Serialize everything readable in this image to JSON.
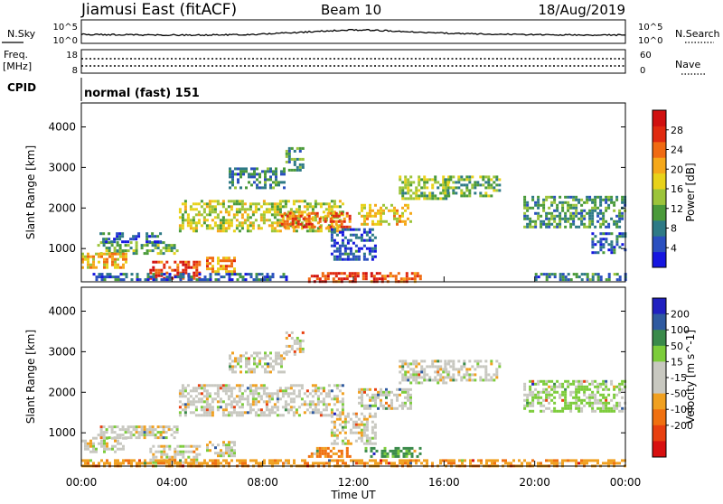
{
  "header": {
    "title": "Jiamusi East (fitACF)",
    "beam": "Beam 10",
    "date": "18/Aug/2019"
  },
  "noise_panel": {
    "left_label": "N.Sky",
    "right_label": "N.Search",
    "left_ticks": [
      "10^5",
      "10^0"
    ],
    "right_ticks": [
      "10^5",
      "10^0"
    ]
  },
  "freq_panel": {
    "left_label": "Freq.",
    "left_unit": "[MHz]",
    "right_label": "Nave",
    "left_ticks": [
      "18",
      "8"
    ],
    "right_ticks": [
      "60",
      "0"
    ]
  },
  "cpid_panel": {
    "label": "CPID",
    "mode": "normal (fast) 151"
  },
  "time_axis": {
    "label": "Time UT",
    "ticks": [
      "00:00",
      "04:00",
      "08:00",
      "12:00",
      "16:00",
      "20:00",
      "00:00"
    ]
  },
  "chart_data": [
    {
      "type": "heatmap",
      "title": "Power",
      "xlabel": "Time UT",
      "ylabel": "Slant Range [km]",
      "x_ticks": [
        "00:00",
        "04:00",
        "08:00",
        "12:00",
        "16:00",
        "20:00",
        "00:00"
      ],
      "y_ticks": [
        1000,
        2000,
        3000,
        4000
      ],
      "ylim": [
        180,
        4590
      ],
      "colorbar": {
        "label": "Power [dB]",
        "ticks": [
          4,
          8,
          12,
          16,
          20,
          24,
          28
        ],
        "colors": [
          "#1616e0",
          "#2a4fbf",
          "#2e7a86",
          "#4a9a3a",
          "#9cc43a",
          "#e8d21a",
          "#f5a81a",
          "#f06a12",
          "#e02a10",
          "#d01010"
        ]
      },
      "bands": [
        {
          "x_start_h": 0.7,
          "x_end_h": 4.2,
          "range_start": 900,
          "range_end": 1180,
          "level": 12
        },
        {
          "x_start_h": 0.8,
          "x_end_h": 3.5,
          "range_start": 1180,
          "range_end": 1400,
          "level": 6
        },
        {
          "x_start_h": 0.0,
          "x_end_h": 2.0,
          "range_start": 520,
          "range_end": 900,
          "level": 20
        },
        {
          "x_start_h": 3.0,
          "x_end_h": 5.2,
          "range_start": 250,
          "range_end": 700,
          "level": 26
        },
        {
          "x_start_h": 5.5,
          "x_end_h": 6.8,
          "range_start": 400,
          "range_end": 800,
          "level": 22
        },
        {
          "x_start_h": 4.3,
          "x_end_h": 11.5,
          "range_start": 1400,
          "range_end": 2200,
          "level": 16
        },
        {
          "x_start_h": 8.8,
          "x_end_h": 11.8,
          "range_start": 1500,
          "range_end": 1900,
          "level": 24
        },
        {
          "x_start_h": 6.5,
          "x_end_h": 9.0,
          "range_start": 2500,
          "range_end": 3000,
          "level": 8
        },
        {
          "x_start_h": 9.0,
          "x_end_h": 9.8,
          "range_start": 2900,
          "range_end": 3500,
          "level": 10
        },
        {
          "x_start_h": 12.2,
          "x_end_h": 14.5,
          "range_start": 1600,
          "range_end": 2100,
          "level": 18
        },
        {
          "x_start_h": 14.0,
          "x_end_h": 16.2,
          "range_start": 2200,
          "range_end": 2800,
          "level": 14
        },
        {
          "x_start_h": 16.0,
          "x_end_h": 18.5,
          "range_start": 2300,
          "range_end": 2800,
          "level": 12
        },
        {
          "x_start_h": 19.5,
          "x_end_h": 24.0,
          "range_start": 1500,
          "range_end": 2300,
          "level": 10
        },
        {
          "x_start_h": 10.0,
          "x_end_h": 15.0,
          "range_start": 200,
          "range_end": 420,
          "level": 26
        },
        {
          "x_start_h": 11.0,
          "x_end_h": 13.0,
          "range_start": 700,
          "range_end": 1500,
          "level": 5
        },
        {
          "x_start_h": 20.0,
          "x_end_h": 24.0,
          "range_start": 200,
          "range_end": 400,
          "level": 8
        },
        {
          "x_start_h": 0.5,
          "x_end_h": 9.0,
          "range_start": 200,
          "range_end": 400,
          "level": 6
        },
        {
          "x_start_h": 22.5,
          "x_end_h": 24.0,
          "range_start": 900,
          "range_end": 1400,
          "level": 6
        }
      ]
    },
    {
      "type": "heatmap",
      "title": "Velocity",
      "xlabel": "Time UT",
      "ylabel": "Slant Range [km]",
      "x_ticks": [
        "00:00",
        "04:00",
        "08:00",
        "12:00",
        "16:00",
        "20:00",
        "00:00"
      ],
      "y_ticks": [
        1000,
        2000,
        3000,
        4000
      ],
      "ylim": [
        180,
        4590
      ],
      "colorbar": {
        "label": "Velocity [m s^-1]",
        "ticks": [
          200,
          100,
          50,
          15,
          -15,
          -50,
          -100,
          -200
        ],
        "colors": [
          "#2020c0",
          "#2f5aa0",
          "#3a8a4a",
          "#7ccc3a",
          "#c8c8c0",
          "#c8c8c0",
          "#f0a020",
          "#f07010",
          "#e84010",
          "#d81010"
        ]
      },
      "bands": [
        {
          "x_start_h": 0.7,
          "x_end_h": 4.2,
          "range_start": 900,
          "range_end": 1180,
          "level": 0
        },
        {
          "x_start_h": 0.0,
          "x_end_h": 2.0,
          "range_start": 520,
          "range_end": 900,
          "level": 0
        },
        {
          "x_start_h": 3.0,
          "x_end_h": 5.2,
          "range_start": 250,
          "range_end": 700,
          "level": 0
        },
        {
          "x_start_h": 5.5,
          "x_end_h": 6.8,
          "range_start": 400,
          "range_end": 800,
          "level": 0
        },
        {
          "x_start_h": 4.3,
          "x_end_h": 11.5,
          "range_start": 1400,
          "range_end": 2200,
          "level": 0
        },
        {
          "x_start_h": 6.5,
          "x_end_h": 9.0,
          "range_start": 2500,
          "range_end": 3000,
          "level": 0
        },
        {
          "x_start_h": 9.0,
          "x_end_h": 9.8,
          "range_start": 2900,
          "range_end": 3500,
          "level": 0
        },
        {
          "x_start_h": 12.2,
          "x_end_h": 14.5,
          "range_start": 1600,
          "range_end": 2100,
          "level": 0
        },
        {
          "x_start_h": 14.0,
          "x_end_h": 16.2,
          "range_start": 2200,
          "range_end": 2800,
          "level": 0
        },
        {
          "x_start_h": 16.0,
          "x_end_h": 18.5,
          "range_start": 2300,
          "range_end": 2800,
          "level": 0
        },
        {
          "x_start_h": 19.5,
          "x_end_h": 24.0,
          "range_start": 1500,
          "range_end": 2300,
          "level": 20
        },
        {
          "x_start_h": 10.0,
          "x_end_h": 12.0,
          "range_start": 420,
          "range_end": 650,
          "level": -60
        },
        {
          "x_start_h": 12.5,
          "x_end_h": 15.0,
          "range_start": 420,
          "range_end": 650,
          "level": 60
        },
        {
          "x_start_h": 0.0,
          "x_end_h": 24.0,
          "range_start": 200,
          "range_end": 350,
          "level": -40
        },
        {
          "x_start_h": 11.0,
          "x_end_h": 13.0,
          "range_start": 700,
          "range_end": 1500,
          "level": 0
        }
      ]
    }
  ]
}
